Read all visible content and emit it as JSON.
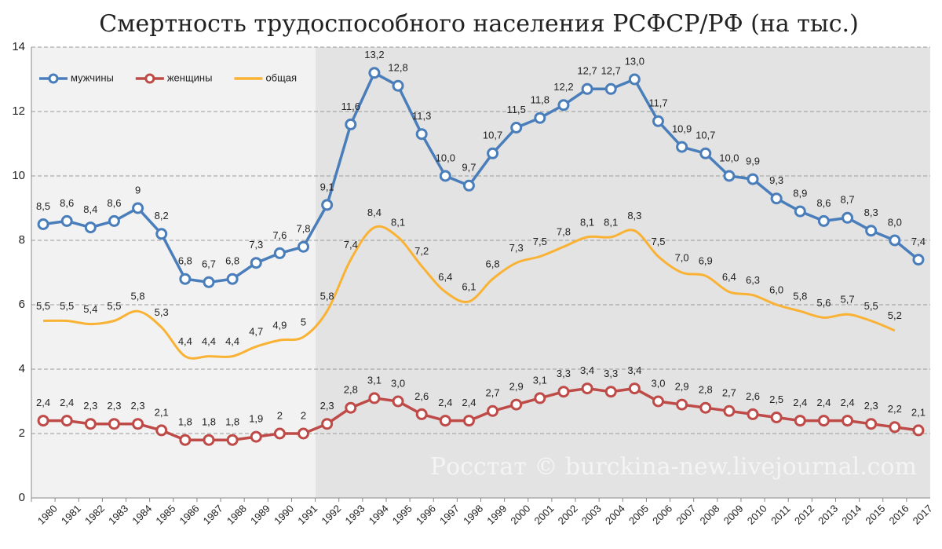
{
  "chart_data": {
    "type": "line",
    "title": "Смертность трудоспособного населения РСФСР/РФ (на тыс.)",
    "annotation": "Росстат © burckina-new.livejournal.com",
    "categories": [
      "1980",
      "1981",
      "1982",
      "1983",
      "1984",
      "1985",
      "1986",
      "1987",
      "1988",
      "1989",
      "1990",
      "1991",
      "1992",
      "1993",
      "1994",
      "1995",
      "1996",
      "1997",
      "1998",
      "1999",
      "2000",
      "2001",
      "2002",
      "2003",
      "2004",
      "2005",
      "2006",
      "2007",
      "2008",
      "2009",
      "2010",
      "2011",
      "2012",
      "2013",
      "2014",
      "2015",
      "2016",
      "2017"
    ],
    "series": [
      {
        "name": "мужчины",
        "color": "#4a7ebb",
        "marker": true,
        "smooth": false,
        "values": [
          8.5,
          8.6,
          8.4,
          8.6,
          9,
          8.2,
          6.8,
          6.7,
          6.8,
          7.3,
          7.6,
          7.8,
          9.1,
          11.6,
          13.2,
          12.8,
          11.3,
          10.0,
          9.7,
          10.7,
          11.5,
          11.8,
          12.2,
          12.7,
          12.7,
          13.0,
          11.7,
          10.9,
          10.7,
          10.0,
          9.9,
          9.3,
          8.9,
          8.6,
          8.7,
          8.3,
          8.0,
          7.4
        ],
        "value_labels": [
          "8,5",
          "8,6",
          "8,4",
          "8,6",
          "9",
          "8,2",
          "6,8",
          "6,7",
          "6,8",
          "7,3",
          "7,6",
          "7,8",
          "9,1",
          "11,6",
          "13,2",
          "12,8",
          "11,3",
          "10,0",
          "9,7",
          "10,7",
          "11,5",
          "11,8",
          "12,2",
          "12,7",
          "12,7",
          "13,0",
          "11,7",
          "10,9",
          "10,7",
          "10,0",
          "9,9",
          "9,3",
          "8,9",
          "8,6",
          "8,7",
          "8,3",
          "8,0",
          "7,4"
        ]
      },
      {
        "name": "женщины",
        "color": "#be4b48",
        "marker": true,
        "smooth": false,
        "values": [
          2.4,
          2.4,
          2.3,
          2.3,
          2.3,
          2.1,
          1.8,
          1.8,
          1.8,
          1.9,
          2,
          2,
          2.3,
          2.8,
          3.1,
          3.0,
          2.6,
          2.4,
          2.4,
          2.7,
          2.9,
          3.1,
          3.3,
          3.4,
          3.3,
          3.4,
          3.0,
          2.9,
          2.8,
          2.7,
          2.6,
          2.5,
          2.4,
          2.4,
          2.4,
          2.3,
          2.2,
          2.1
        ],
        "value_labels": [
          "2,4",
          "2,4",
          "2,3",
          "2,3",
          "2,3",
          "2,1",
          "1,8",
          "1,8",
          "1,8",
          "1,9",
          "2",
          "2",
          "2,3",
          "2,8",
          "3,1",
          "3,0",
          "2,6",
          "2,4",
          "2,4",
          "2,7",
          "2,9",
          "3,1",
          "3,3",
          "3,4",
          "3,3",
          "3,4",
          "3,0",
          "2,9",
          "2,8",
          "2,7",
          "2,6",
          "2,5",
          "2,4",
          "2,4",
          "2,4",
          "2,3",
          "2,2",
          "2,1"
        ]
      },
      {
        "name": "общая",
        "color": "#f9b234",
        "marker": false,
        "smooth": true,
        "values": [
          5.5,
          5.5,
          5.4,
          5.5,
          5.8,
          5.3,
          4.4,
          4.4,
          4.4,
          4.7,
          4.9,
          5,
          5.8,
          7.4,
          8.4,
          8.1,
          7.2,
          6.4,
          6.1,
          6.8,
          7.3,
          7.5,
          7.8,
          8.1,
          8.1,
          8.3,
          7.5,
          7.0,
          6.9,
          6.4,
          6.3,
          6.0,
          5.8,
          5.6,
          5.7,
          5.5,
          5.2,
          null
        ],
        "value_labels": [
          "5,5",
          "5,5",
          "5,4",
          "5,5",
          "5,8",
          "5,3",
          "4,4",
          "4,4",
          "4,4",
          "4,7",
          "4,9",
          "5",
          "5,8",
          "7,4",
          "8,4",
          "8,1",
          "7,2",
          "6,4",
          "6,1",
          "6,8",
          "7,3",
          "7,5",
          "7,8",
          "8,1",
          "8,1",
          "8,3",
          "7,5",
          "7,0",
          "6,9",
          "6,4",
          "6,3",
          "6,0",
          "5,8",
          "5,6",
          "5,7",
          "5,5",
          "5,2",
          null
        ]
      }
    ],
    "ylim": [
      0,
      14
    ],
    "yticks": [
      0,
      2,
      4,
      6,
      8,
      10,
      12,
      14
    ],
    "grid": true,
    "legend": "top-left"
  }
}
